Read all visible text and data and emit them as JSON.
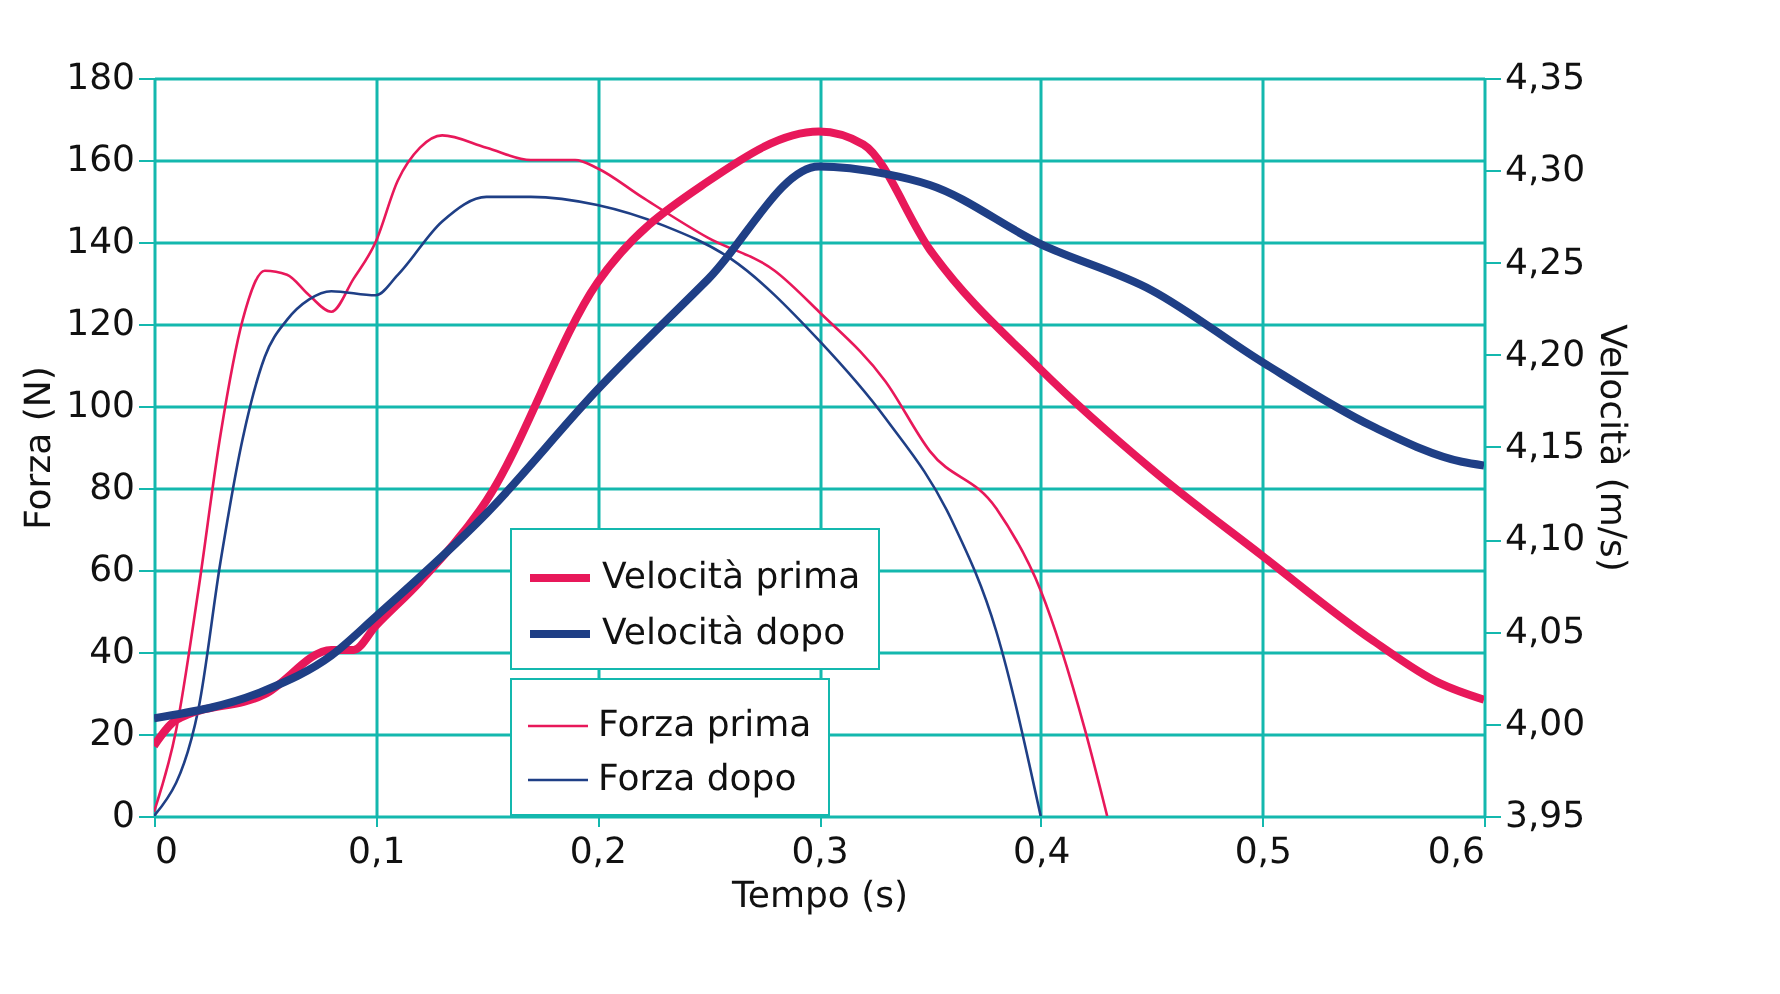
{
  "chart_data": {
    "type": "line",
    "xlabel": "Tempo (s)",
    "ylabel": "Forza (N)",
    "y2label": "Velocità (m/s)",
    "xlim": [
      0,
      0.6
    ],
    "xticks": [
      0,
      {
        "value": 0.1,
        "label": "0,1"
      },
      {
        "value": 0.2,
        "label": "0,2"
      },
      {
        "value": 0.3,
        "label": "0,3"
      },
      {
        "value": 0.4,
        "label": "0,4"
      },
      {
        "value": 0.5,
        "label": "0,5"
      },
      {
        "value": 0.6,
        "label": "0,6"
      }
    ],
    "ylim": [
      0,
      180
    ],
    "yticks": [
      0,
      20,
      40,
      60,
      80,
      100,
      120,
      140,
      160,
      180
    ],
    "y2lim": [
      3.95,
      4.35
    ],
    "y2ticks": [
      {
        "value": 3.95,
        "label": "3,95"
      },
      {
        "value": 4.0,
        "label": "4,00"
      },
      {
        "value": 4.05,
        "label": "4,05"
      },
      {
        "value": 4.1,
        "label": "4,10"
      },
      {
        "value": 4.15,
        "label": "4,15"
      },
      {
        "value": 4.2,
        "label": "4,20"
      },
      {
        "value": 4.25,
        "label": "4,25"
      },
      {
        "value": 4.3,
        "label": "4,30"
      },
      {
        "value": 4.35,
        "label": "4,35"
      }
    ],
    "grid": true,
    "legend": "bottom",
    "marker": "none",
    "line_style": "solid",
    "series": [
      {
        "name": "Velocità prima",
        "color": "#e8185a",
        "axis": "y2",
        "x": [
          0,
          0.01,
          0.05,
          0.08,
          0.09,
          0.1,
          0.12,
          0.15,
          0.2,
          0.25,
          0.3,
          0.32,
          0.35,
          0.4,
          0.45,
          0.5,
          0.55,
          0.58,
          0.6
        ],
        "values": [
          3.988,
          4.002,
          4.016,
          4.04,
          4.04,
          4.053,
          4.077,
          4.121,
          4.239,
          4.294,
          4.321,
          4.314,
          4.257,
          4.192,
          4.138,
          4.091,
          4.045,
          4.022,
          4.013
        ]
      },
      {
        "name": "Velocità dopo",
        "color": "#1f3f86",
        "axis": "y2",
        "x": [
          0,
          0.05,
          0.08,
          0.1,
          0.15,
          0.2,
          0.25,
          0.3,
          0.33,
          0.35,
          0.4,
          0.45,
          0.5,
          0.55,
          0.59,
          0.6
        ],
        "values": [
          4.003,
          4.018,
          4.037,
          4.058,
          4.114,
          4.181,
          4.241,
          4.302,
          4.298,
          4.292,
          4.26,
          4.235,
          4.196,
          4.161,
          4.142,
          4.14
        ]
      },
      {
        "name": "Forza prima",
        "color": "#e8185a",
        "x": [
          0,
          0.01,
          0.02,
          0.03,
          0.04,
          0.05,
          0.06,
          0.07,
          0.08,
          0.09,
          0.1,
          0.11,
          0.12,
          0.13,
          0.15,
          0.17,
          0.19,
          0.2,
          0.22,
          0.25,
          0.28,
          0.3,
          0.33,
          0.35,
          0.38,
          0.4,
          0.42,
          0.43
        ],
        "values": [
          1,
          21,
          55,
          93,
          121,
          133,
          132,
          127,
          123,
          131,
          140,
          155,
          163,
          166,
          163,
          160,
          160,
          158,
          151,
          141,
          133,
          123,
          106,
          89,
          75,
          55,
          21,
          0
        ]
      },
      {
        "name": "Forza dopo",
        "color": "#1f3f86",
        "x": [
          0,
          0.02,
          0.03,
          0.04,
          0.05,
          0.06,
          0.07,
          0.08,
          0.1,
          0.11,
          0.13,
          0.15,
          0.17,
          0.2,
          0.23,
          0.26,
          0.3,
          0.33,
          0.36,
          0.38,
          0.4
        ],
        "values": [
          0,
          26,
          62,
          92,
          112,
          121,
          126,
          128,
          127,
          132,
          145,
          151,
          151,
          149,
          144,
          136,
          116,
          97,
          72,
          45,
          0
        ]
      }
    ]
  }
}
